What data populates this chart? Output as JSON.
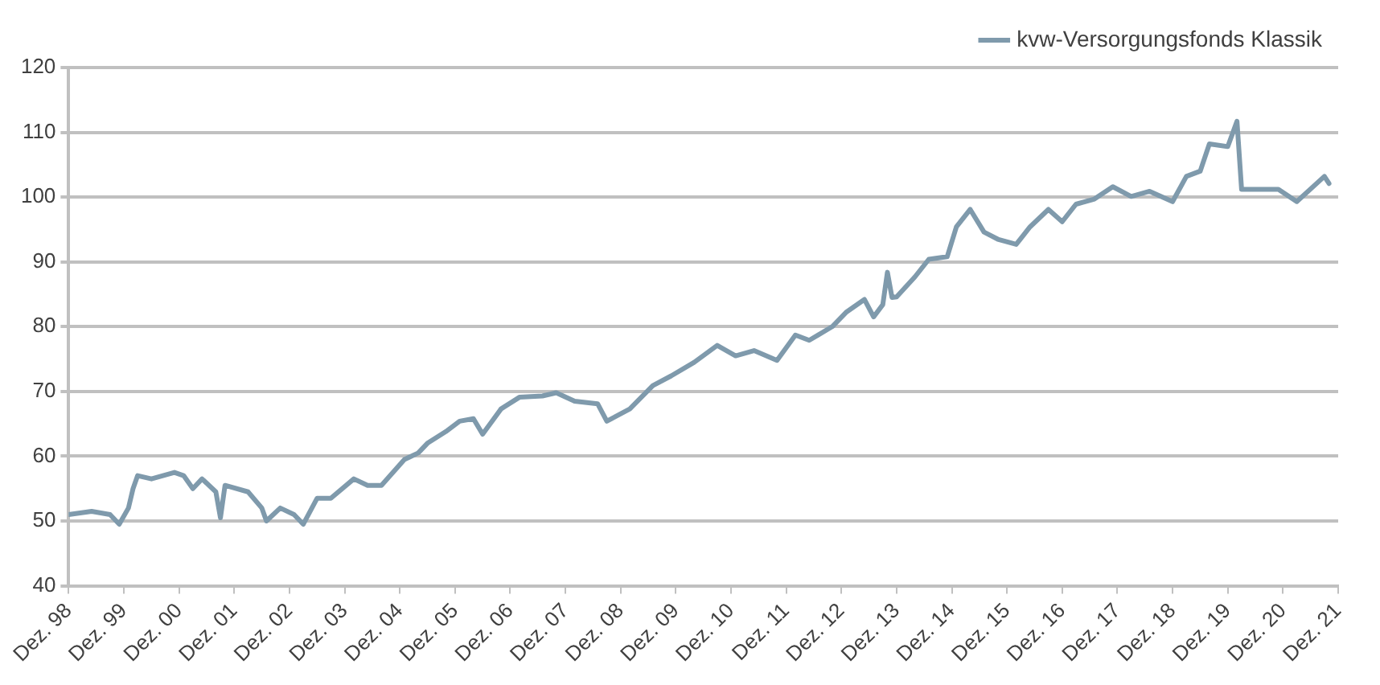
{
  "chart_data": {
    "type": "line",
    "xlim": [
      "1998-12",
      "2021-12"
    ],
    "ylim": [
      40,
      120
    ],
    "xticks": [
      {
        "value": "1998-12",
        "label": "Dez. 98"
      },
      {
        "value": "1999-12",
        "label": "Dez. 99"
      },
      {
        "value": "2000-12",
        "label": "Dez. 00"
      },
      {
        "value": "2001-12",
        "label": "Dez. 01"
      },
      {
        "value": "2002-12",
        "label": "Dez. 02"
      },
      {
        "value": "2003-12",
        "label": "Dez. 03"
      },
      {
        "value": "2004-12",
        "label": "Dez. 04"
      },
      {
        "value": "2005-12",
        "label": "Dez. 05"
      },
      {
        "value": "2006-12",
        "label": "Dez. 06"
      },
      {
        "value": "2007-12",
        "label": "Dez. 07"
      },
      {
        "value": "2008-12",
        "label": "Dez. 08"
      },
      {
        "value": "2009-12",
        "label": "Dez. 09"
      },
      {
        "value": "2010-12",
        "label": "Dez. 10"
      },
      {
        "value": "2011-12",
        "label": "Dez. 11"
      },
      {
        "value": "2012-12",
        "label": "Dez. 12"
      },
      {
        "value": "2013-12",
        "label": "Dez. 13"
      },
      {
        "value": "2014-12",
        "label": "Dez. 14"
      },
      {
        "value": "2015-12",
        "label": "Dez. 15"
      },
      {
        "value": "2016-12",
        "label": "Dez. 16"
      },
      {
        "value": "2017-12",
        "label": "Dez. 17"
      },
      {
        "value": "2018-12",
        "label": "Dez. 18"
      },
      {
        "value": "2019-12",
        "label": "Dez. 19"
      },
      {
        "value": "2020-12",
        "label": "Dez. 20"
      },
      {
        "value": "2021-12",
        "label": "Dez. 21"
      }
    ],
    "yticks": [
      40,
      50,
      60,
      70,
      80,
      90,
      100,
      110,
      120
    ],
    "grid": "y",
    "legend": "top right",
    "marker": "none",
    "line_style": "solid",
    "series": [
      {
        "name": "kvw-Versorgungsfonds Klassik",
        "color": "#7f9aac",
        "x": [
          "1998-12",
          "1999-05",
          "1999-09",
          "1999-11",
          "2000-01",
          "2000-02",
          "2000-03",
          "2000-06",
          "2000-11",
          "2001-01",
          "2001-03",
          "2001-05",
          "2001-08",
          "2001-09",
          "2001-10",
          "2002-03",
          "2002-06",
          "2002-07",
          "2002-10",
          "2003-01",
          "2003-03",
          "2003-06",
          "2003-09",
          "2004-02",
          "2004-05",
          "2004-08",
          "2005-01",
          "2005-04",
          "2005-06",
          "2005-10",
          "2006-01",
          "2006-04",
          "2006-06",
          "2006-10",
          "2007-02",
          "2007-07",
          "2007-10",
          "2008-02",
          "2008-07",
          "2008-09",
          "2009-02",
          "2009-07",
          "2009-11",
          "2010-04",
          "2010-09",
          "2011-01",
          "2011-05",
          "2011-10",
          "2012-02",
          "2012-05",
          "2012-10",
          "2013-01",
          "2013-05",
          "2013-07",
          "2013-09",
          "2013-10",
          "2013-11",
          "2013-12",
          "2014-04",
          "2014-07",
          "2014-11",
          "2015-01",
          "2015-04",
          "2015-07",
          "2015-10",
          "2016-02",
          "2016-05",
          "2016-09",
          "2016-12",
          "2017-03",
          "2017-07",
          "2017-11",
          "2018-03",
          "2018-07",
          "2018-12",
          "2019-03",
          "2019-06",
          "2019-08",
          "2019-12",
          "2020-02",
          "2020-03",
          "2020-11",
          "2021-03",
          "2021-09",
          "2021-10"
        ],
        "values": [
          51,
          51.5,
          51,
          49.5,
          52,
          55,
          57,
          56.5,
          57.5,
          57,
          55,
          56.5,
          54.5,
          50.5,
          55.5,
          54.5,
          52,
          50,
          52,
          51,
          49.5,
          53.5,
          53.5,
          56.5,
          55.5,
          55.5,
          59.5,
          60.5,
          62,
          63.8,
          65.4,
          65.8,
          63.4,
          67.3,
          69.1,
          69.3,
          69.8,
          68.5,
          68.1,
          65.4,
          67.3,
          70.9,
          72.4,
          74.5,
          77.1,
          75.5,
          76.3,
          74.8,
          78.7,
          77.9,
          80,
          82.2,
          84.2,
          81.5,
          83.4,
          88.4,
          84.5,
          84.6,
          87.7,
          90.4,
          90.8,
          95.4,
          98.1,
          94.6,
          93.5,
          92.7,
          95.4,
          98.1,
          96.2,
          98.9,
          99.7,
          101.6,
          100.1,
          100.9,
          99.3,
          103.2,
          104,
          108.2,
          107.8,
          111.7,
          101.2,
          101.2,
          99.3,
          103.2,
          102.1
        ]
      }
    ]
  }
}
